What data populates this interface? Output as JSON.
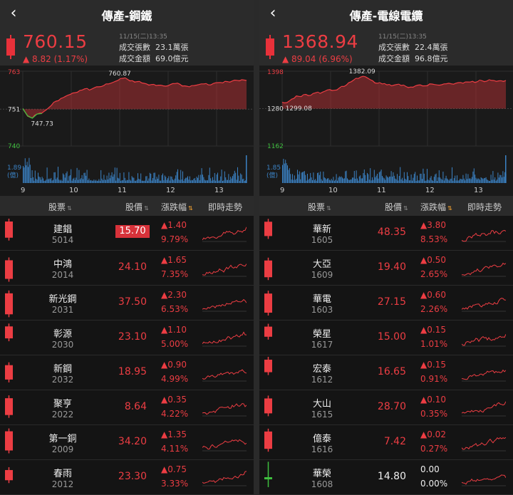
{
  "left": {
    "title": "傳產-鋼鐵",
    "back_icon": "chevron-left-icon",
    "price": "760.15",
    "change": "▲ 8.82 (1.17%)",
    "timestamp": "11/15(二)13:35",
    "volume_label": "成交張數",
    "volume_value": "23.1萬張",
    "amount_label": "成交金額",
    "amount_value": "69.0億元",
    "chart": {
      "y_top": "763",
      "y_prev": "751",
      "y_bottom": "740",
      "high_label": "760.87",
      "low_label": "747.73",
      "vol_label": "1.89",
      "vol_unit": "(億)",
      "x_ticks": [
        "9",
        "10",
        "11",
        "12",
        "13"
      ],
      "prev_close": 751.33,
      "y_max": 763,
      "y_min": 740,
      "series": [
        751.5,
        749.2,
        748.6,
        749.8,
        750.1,
        751.2,
        752.5,
        753.8,
        754.6,
        755.3,
        755.9,
        756.4,
        757.1,
        757.6,
        757.2,
        757.9,
        758.2,
        758.6,
        759.1,
        759.6,
        760.2,
        760.8,
        760.5,
        760.1,
        759.8,
        759.4,
        759.1,
        758.9,
        758.6,
        758.7,
        758.4,
        758.9,
        759.2,
        759.0,
        758.5,
        758.2,
        758.6,
        758.9,
        759.1,
        758.8,
        759.2,
        759.5,
        759.4,
        759.8,
        760.0,
        760.2,
        760.4,
        760.15
      ]
    },
    "headers": {
      "stock": "股票",
      "price": "股價",
      "change": "漲跌幅",
      "trend": "即時走勢"
    },
    "rows": [
      {
        "name": "建錩",
        "code": "5014",
        "price": "15.70",
        "delta": "▲1.40",
        "pct": "9.79%",
        "dir": "up",
        "highlight": true
      },
      {
        "name": "中鴻",
        "code": "2014",
        "price": "24.10",
        "delta": "▲1.65",
        "pct": "7.35%",
        "dir": "up"
      },
      {
        "name": "新光鋼",
        "code": "2031",
        "price": "37.50",
        "delta": "▲2.30",
        "pct": "6.53%",
        "dir": "up"
      },
      {
        "name": "彰源",
        "code": "2030",
        "price": "23.10",
        "delta": "▲1.10",
        "pct": "5.00%",
        "dir": "up"
      },
      {
        "name": "新鋼",
        "code": "2032",
        "price": "18.95",
        "delta": "▲0.90",
        "pct": "4.99%",
        "dir": "up"
      },
      {
        "name": "聚亨",
        "code": "2022",
        "price": "8.64",
        "delta": "▲0.35",
        "pct": "4.22%",
        "dir": "up"
      },
      {
        "name": "第一銅",
        "code": "2009",
        "price": "34.20",
        "delta": "▲1.35",
        "pct": "4.11%",
        "dir": "up"
      },
      {
        "name": "春雨",
        "code": "2012",
        "price": "23.30",
        "delta": "▲0.75",
        "pct": "3.33%",
        "dir": "up"
      }
    ]
  },
  "right": {
    "title": "傳產-電線電纜",
    "back_icon": "chevron-left-icon",
    "price": "1368.94",
    "change": "▲ 89.04 (6.96%)",
    "timestamp": "11/15(二)13:35",
    "volume_label": "成交張數",
    "volume_value": "22.4萬張",
    "amount_label": "成交金額",
    "amount_value": "96.8億元",
    "chart": {
      "y_top": "1398",
      "y_prev": "1280",
      "y_bottom": "1162",
      "high_label": "1382.09",
      "low_label": "1299.08",
      "vol_label": "1.85",
      "vol_unit": "(億)",
      "x_ticks": [
        "9",
        "10",
        "11",
        "12",
        "13"
      ],
      "prev_close": 1279.9,
      "y_max": 1398,
      "y_min": 1162,
      "series": [
        1300,
        1299.1,
        1310,
        1320,
        1318,
        1325,
        1322,
        1330,
        1328,
        1335,
        1340,
        1338,
        1345,
        1350,
        1362,
        1370,
        1375,
        1382,
        1376,
        1368,
        1360,
        1358,
        1355,
        1352,
        1356,
        1353,
        1350,
        1348,
        1352,
        1355,
        1352,
        1358,
        1356,
        1354,
        1358,
        1360,
        1357,
        1362,
        1360,
        1364,
        1366,
        1365,
        1368,
        1367,
        1369,
        1366,
        1368,
        1368.94
      ]
    },
    "headers": {
      "stock": "股票",
      "price": "股價",
      "change": "漲跌幅",
      "trend": "即時走勢"
    },
    "rows": [
      {
        "name": "華新",
        "code": "1605",
        "price": "48.35",
        "delta": "▲3.80",
        "pct": "8.53%",
        "dir": "up"
      },
      {
        "name": "大亞",
        "code": "1609",
        "price": "19.40",
        "delta": "▲0.50",
        "pct": "2.65%",
        "dir": "up"
      },
      {
        "name": "華電",
        "code": "1603",
        "price": "27.15",
        "delta": "▲0.60",
        "pct": "2.26%",
        "dir": "up"
      },
      {
        "name": "榮星",
        "code": "1617",
        "price": "15.00",
        "delta": "▲0.15",
        "pct": "1.01%",
        "dir": "up"
      },
      {
        "name": "宏泰",
        "code": "1612",
        "price": "16.65",
        "delta": "▲0.15",
        "pct": "0.91%",
        "dir": "up"
      },
      {
        "name": "大山",
        "code": "1615",
        "price": "28.70",
        "delta": "▲0.10",
        "pct": "0.35%",
        "dir": "up"
      },
      {
        "name": "億泰",
        "code": "1616",
        "price": "7.42",
        "delta": "▲0.02",
        "pct": "0.27%",
        "dir": "up"
      },
      {
        "name": "華榮",
        "code": "1608",
        "price": "14.80",
        "delta": "0.00",
        "pct": "0.00%",
        "dir": "flat"
      }
    ]
  },
  "colors": {
    "up": "#ec3d43",
    "down": "#3fbf3f",
    "volume": "#3b82c4",
    "highlight": "#d8323a",
    "sort_active": "#f0a030"
  }
}
